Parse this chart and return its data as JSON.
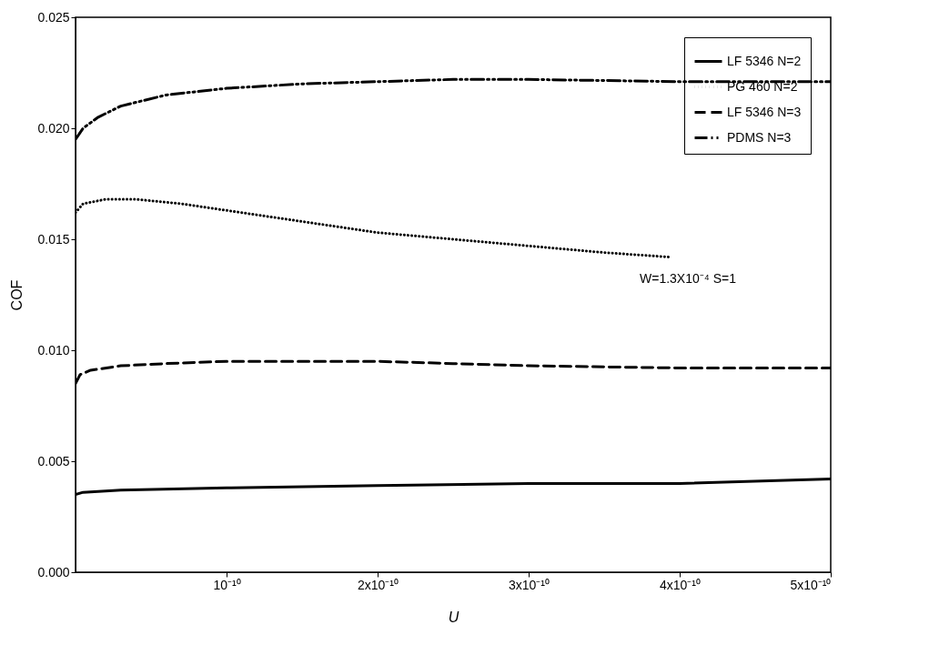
{
  "chart_data": {
    "type": "line",
    "xlabel": "U",
    "ylabel": "COF",
    "xlim": [
      0,
      5e-10
    ],
    "ylim": [
      0,
      0.025
    ],
    "xticks": [
      {
        "value": 1e-10,
        "label": "10⁻¹⁰"
      },
      {
        "value": 2e-10,
        "label": "2x10⁻¹⁰"
      },
      {
        "value": 3e-10,
        "label": "3x10⁻¹⁰"
      },
      {
        "value": 4e-10,
        "label": "4x10⁻¹⁰"
      },
      {
        "value": 5e-10,
        "label": "5x10⁻¹⁰"
      }
    ],
    "yticks": [
      {
        "value": 0,
        "label": "0.000"
      },
      {
        "value": 0.005,
        "label": "0.005"
      },
      {
        "value": 0.01,
        "label": "0.010"
      },
      {
        "value": 0.015,
        "label": "0.015"
      },
      {
        "value": 0.02,
        "label": "0.020"
      },
      {
        "value": 0.025,
        "label": "0.025"
      }
    ],
    "grid": false,
    "legend": "top right",
    "annotations": [
      "W=1.3X10⁻⁴ S=1"
    ],
    "series": [
      {
        "name": "LF 5346 N=2",
        "color": "#000000",
        "line_style": "solid",
        "x": [
          0,
          5e-12,
          3e-11,
          1e-10,
          2e-10,
          3e-10,
          4e-10,
          5e-10
        ],
        "values": [
          0.0035,
          0.0036,
          0.0037,
          0.0038,
          0.0039,
          0.004,
          0.004,
          0.0042
        ]
      },
      {
        "name": "PG 460  N=2",
        "color": "#000000",
        "line_style": "dotted",
        "x": [
          0,
          5e-12,
          2e-11,
          4e-11,
          7e-11,
          1e-10,
          1.5e-10,
          2e-10,
          2.5e-10,
          3e-10,
          3.5e-10,
          3.93e-10
        ],
        "values": [
          0.0162,
          0.0166,
          0.0168,
          0.0168,
          0.0166,
          0.0163,
          0.0158,
          0.0153,
          0.015,
          0.0147,
          0.0144,
          0.0142
        ]
      },
      {
        "name": "LF 5346 N=3",
        "color": "#000000",
        "line_style": "dashed",
        "x": [
          0,
          3e-12,
          1e-11,
          3e-11,
          6e-11,
          1e-10,
          2e-10,
          2.5e-10,
          3e-10,
          4e-10,
          5e-10
        ],
        "values": [
          0.0085,
          0.0089,
          0.0091,
          0.0093,
          0.0094,
          0.0095,
          0.0095,
          0.0094,
          0.0093,
          0.0092,
          0.0092
        ]
      },
      {
        "name": "PDMS   N=3",
        "color": "#000000",
        "line_style": "dashdotdot",
        "x": [
          0,
          5e-12,
          1.5e-11,
          3e-11,
          6e-11,
          1e-10,
          1.5e-10,
          2e-10,
          2.5e-10,
          3e-10,
          4e-10,
          5e-10
        ],
        "values": [
          0.0195,
          0.02,
          0.0205,
          0.021,
          0.0215,
          0.0218,
          0.022,
          0.0221,
          0.0222,
          0.0222,
          0.0221,
          0.0221
        ]
      }
    ]
  }
}
